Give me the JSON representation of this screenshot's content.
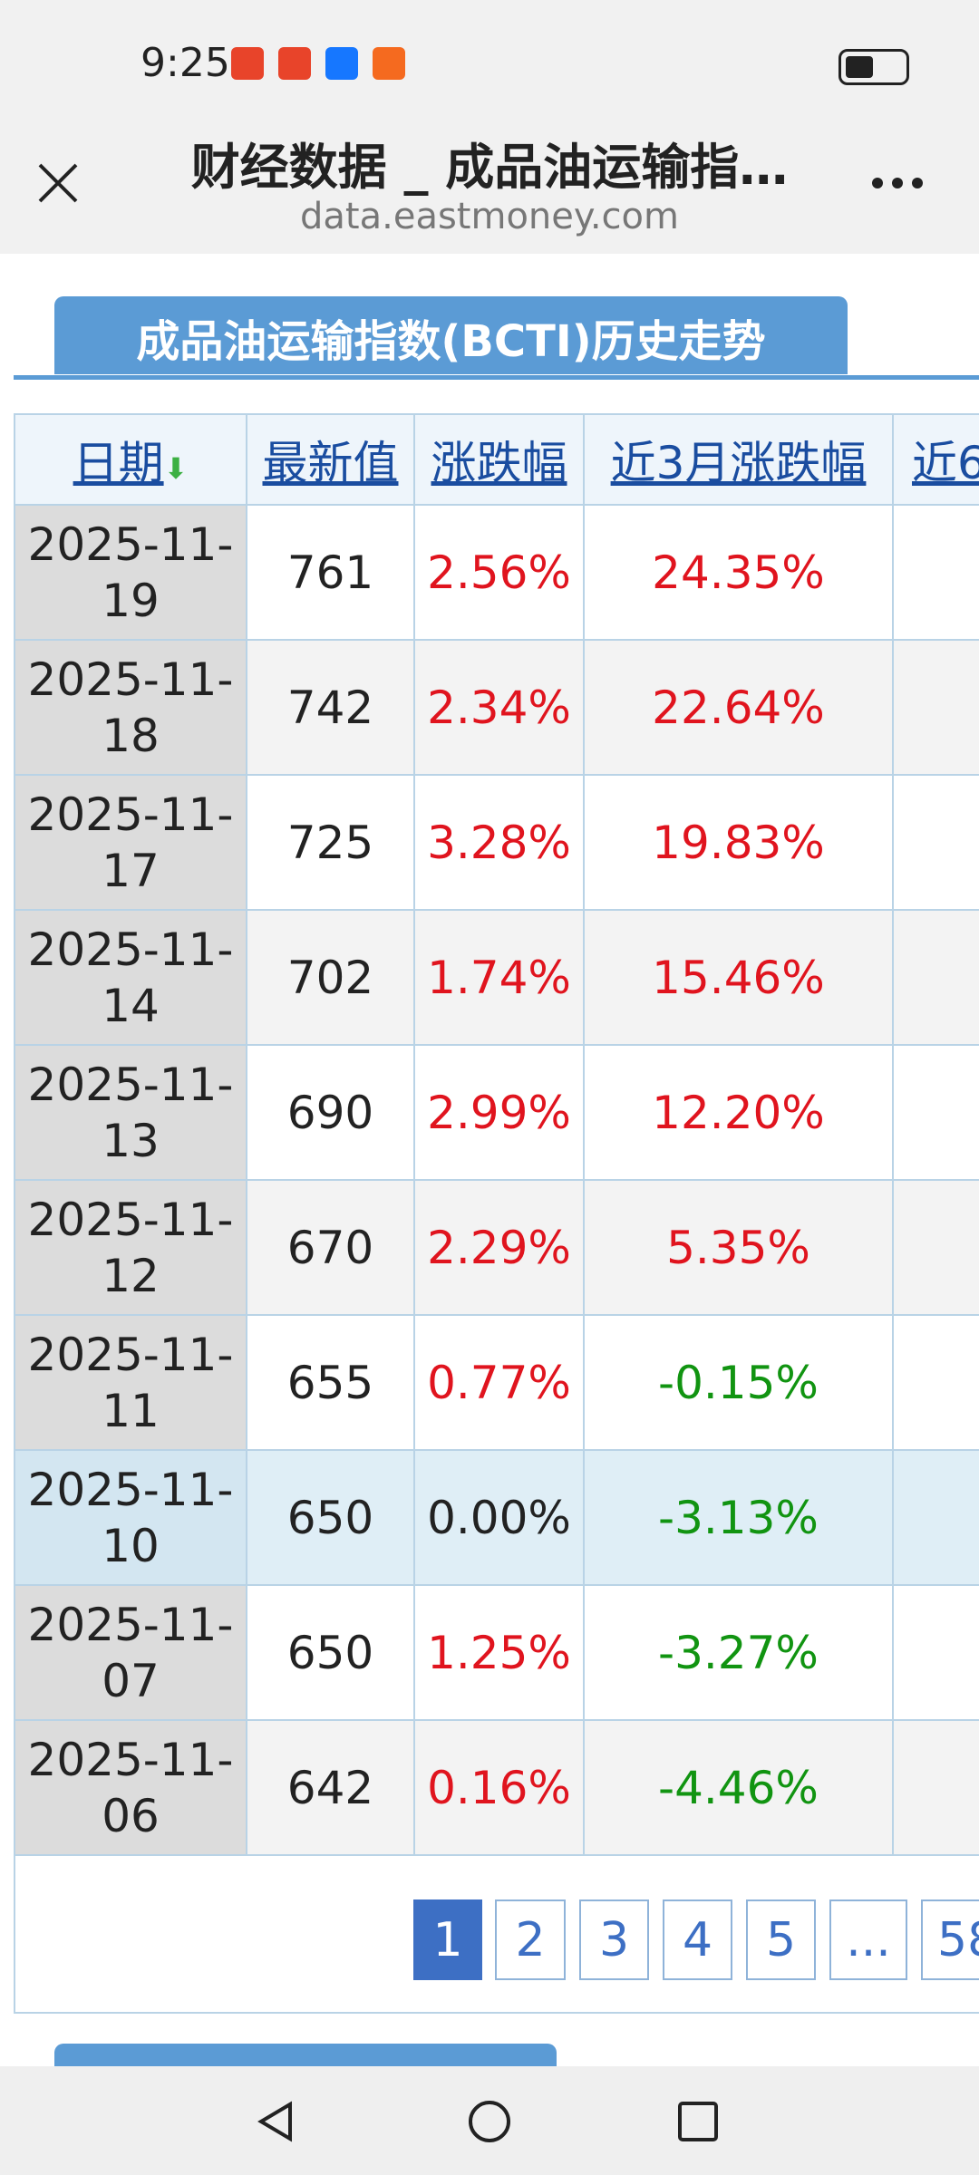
{
  "status": {
    "time": "9:25"
  },
  "browser": {
    "title": "财经数据 _ 成品油运输指…",
    "url": "data.eastmoney.com"
  },
  "section": {
    "title": "成品油运输指数(BCTI)历史走势"
  },
  "table": {
    "headers": [
      "日期",
      "最新值",
      "涨跌幅",
      "近3月涨跌幅",
      "近6"
    ],
    "rows": [
      [
        "2025-11-19",
        "761",
        "2.56%",
        "24.35%"
      ],
      [
        "2025-11-18",
        "742",
        "2.34%",
        "22.64%"
      ],
      [
        "2025-11-17",
        "725",
        "3.28%",
        "19.83%"
      ],
      [
        "2025-11-14",
        "702",
        "1.74%",
        "15.46%"
      ],
      [
        "2025-11-13",
        "690",
        "2.99%",
        "12.20%"
      ],
      [
        "2025-11-12",
        "670",
        "2.29%",
        "5.35%"
      ],
      [
        "2025-11-11",
        "655",
        "0.77%",
        "-0.15%"
      ],
      [
        "2025-11-10",
        "650",
        "0.00%",
        "-3.13%"
      ],
      [
        "2025-11-07",
        "650",
        "1.25%",
        "-3.27%"
      ],
      [
        "2025-11-06",
        "642",
        "0.16%",
        "-4.46%"
      ]
    ]
  },
  "pagination": {
    "pages": [
      "1",
      "2",
      "3",
      "4",
      "5",
      "...",
      "58"
    ]
  }
}
